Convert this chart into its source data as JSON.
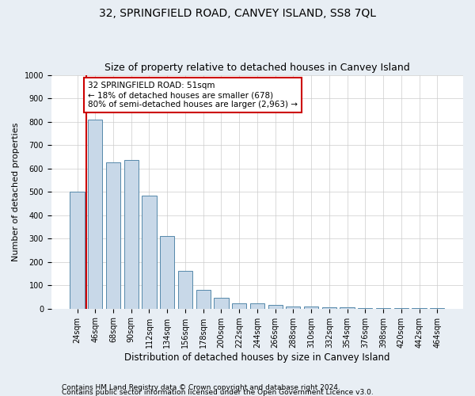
{
  "title": "32, SPRINGFIELD ROAD, CANVEY ISLAND, SS8 7QL",
  "subtitle": "Size of property relative to detached houses in Canvey Island",
  "xlabel": "Distribution of detached houses by size in Canvey Island",
  "ylabel": "Number of detached properties",
  "footer1": "Contains HM Land Registry data © Crown copyright and database right 2024.",
  "footer2": "Contains public sector information licensed under the Open Government Licence v3.0.",
  "categories": [
    "24sqm",
    "46sqm",
    "68sqm",
    "90sqm",
    "112sqm",
    "134sqm",
    "156sqm",
    "178sqm",
    "200sqm",
    "222sqm",
    "244sqm",
    "266sqm",
    "288sqm",
    "310sqm",
    "332sqm",
    "354sqm",
    "376sqm",
    "398sqm",
    "420sqm",
    "442sqm",
    "464sqm"
  ],
  "values": [
    500,
    810,
    625,
    635,
    483,
    310,
    160,
    80,
    45,
    22,
    22,
    15,
    10,
    10,
    7,
    5,
    3,
    2,
    2,
    1,
    2
  ],
  "bar_color": "#c8d8e8",
  "bar_edge_color": "#5588aa",
  "property_line_x": 0.5,
  "property_line_color": "#cc0000",
  "annotation_text": "32 SPRINGFIELD ROAD: 51sqm\n← 18% of detached houses are smaller (678)\n80% of semi-detached houses are larger (2,963) →",
  "annotation_box_color": "#ffffff",
  "annotation_box_edge": "#cc0000",
  "ylim": [
    0,
    1000
  ],
  "yticks": [
    0,
    100,
    200,
    300,
    400,
    500,
    600,
    700,
    800,
    900,
    1000
  ],
  "title_fontsize": 10,
  "subtitle_fontsize": 9,
  "bar_width": 0.8,
  "background_color": "#e8eef4",
  "plot_bg_color": "#ffffff",
  "annotation_fontsize": 7.5,
  "xlabel_fontsize": 8.5,
  "ylabel_fontsize": 8,
  "footer_fontsize": 6.5,
  "tick_fontsize": 7
}
